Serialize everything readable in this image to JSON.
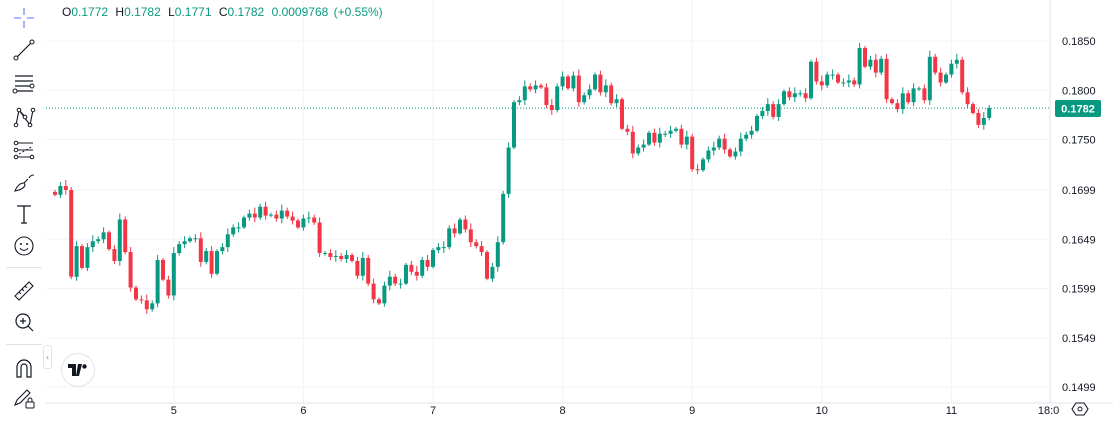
{
  "legend": {
    "open_label": "O",
    "open": "0.1772",
    "high_label": "H",
    "high": "0.1782",
    "low_label": "L",
    "low": "0.1771",
    "close_label": "C",
    "close": "0.1782",
    "change": "0.0009768",
    "change_pct": "(+0.55%)"
  },
  "toolbar": {
    "tools": [
      "crosshair-icon",
      "trend-line-icon",
      "horizontal-lines-icon",
      "pattern-icon",
      "fib-icon",
      "brush-icon",
      "text-icon",
      "emoji-icon",
      "ruler-icon",
      "zoom-in-icon",
      "magnet-icon",
      "pencil-lock-icon"
    ]
  },
  "colors": {
    "up": "#089981",
    "down": "#F23645",
    "last_price": "#089981"
  },
  "chart_data": {
    "type": "candlestick",
    "interval": "1 hour",
    "first_open": 0.1697,
    "close": [
      0.1694,
      0.1703,
      0.1699,
      0.1611,
      0.1642,
      0.162,
      0.1641,
      0.1647,
      0.1649,
      0.1656,
      0.1639,
      0.1627,
      0.1669,
      0.1636,
      0.16,
      0.1588,
      0.1587,
      0.1578,
      0.1584,
      0.1628,
      0.1608,
      0.1592,
      0.1635,
      0.1644,
      0.1647,
      0.165,
      0.165,
      0.1626,
      0.1637,
      0.1614,
      0.1637,
      0.1641,
      0.1654,
      0.1661,
      0.1661,
      0.1671,
      0.1675,
      0.1671,
      0.1682,
      0.1673,
      0.1674,
      0.167,
      0.1678,
      0.1672,
      0.1668,
      0.1661,
      0.167,
      0.1671,
      0.1666,
      0.1635,
      0.1635,
      0.1631,
      0.1632,
      0.1629,
      0.1633,
      0.1627,
      0.1612,
      0.163,
      0.1604,
      0.1588,
      0.1584,
      0.1602,
      0.1611,
      0.1604,
      0.1604,
      0.1623,
      0.1616,
      0.1612,
      0.1628,
      0.1621,
      0.1638,
      0.1641,
      0.1641,
      0.166,
      0.1655,
      0.1669,
      0.1659,
      0.1646,
      0.1642,
      0.1636,
      0.1609,
      0.1621,
      0.1646,
      0.1695,
      0.1742,
      0.1788,
      0.179,
      0.1804,
      0.1801,
      0.1805,
      0.1803,
      0.1785,
      0.178,
      0.1804,
      0.1814,
      0.1802,
      0.1815,
      0.1788,
      0.1795,
      0.1801,
      0.1816,
      0.1798,
      0.1805,
      0.1787,
      0.1791,
      0.1761,
      0.1758,
      0.1736,
      0.1742,
      0.1745,
      0.1757,
      0.1747,
      0.1756,
      0.1756,
      0.1759,
      0.1761,
      0.1745,
      0.1753,
      0.172,
      0.1719,
      0.173,
      0.1739,
      0.1742,
      0.1751,
      0.174,
      0.1733,
      0.1738,
      0.1751,
      0.1755,
      0.1759,
      0.1774,
      0.1779,
      0.1786,
      0.1773,
      0.1786,
      0.1799,
      0.1793,
      0.1797,
      0.1797,
      0.1792,
      0.1829,
      0.1809,
      0.1805,
      0.1816,
      0.1816,
      0.1808,
      0.1808,
      0.181,
      0.1806,
      0.1843,
      0.1824,
      0.1831,
      0.1818,
      0.1832,
      0.1791,
      0.1787,
      0.1781,
      0.1797,
      0.1788,
      0.1802,
      0.1802,
      0.179,
      0.1834,
      0.1818,
      0.1808,
      0.1816,
      0.1827,
      0.1831,
      0.1798,
      0.1786,
      0.1777,
      0.1765,
      0.1772,
      0.1782
    ],
    "last_price": "0.1782",
    "y_ticks": [
      "0.1850",
      "0.1800",
      "0.1750",
      "0.1699",
      "0.1649",
      "0.1599",
      "0.1549",
      "0.1499"
    ],
    "y_tick_values": [
      0.185,
      0.18,
      0.175,
      0.1699,
      0.1649,
      0.1599,
      0.1549,
      0.1499
    ],
    "x_ticks": [
      "5",
      "6",
      "7",
      "8",
      "9",
      "10",
      "11",
      "18:0"
    ],
    "x_tick_hours_from_start": [
      22,
      46,
      70,
      94,
      118,
      142,
      166,
      184
    ],
    "ylim": [
      0.1487,
      0.1876
    ],
    "grid": true
  }
}
